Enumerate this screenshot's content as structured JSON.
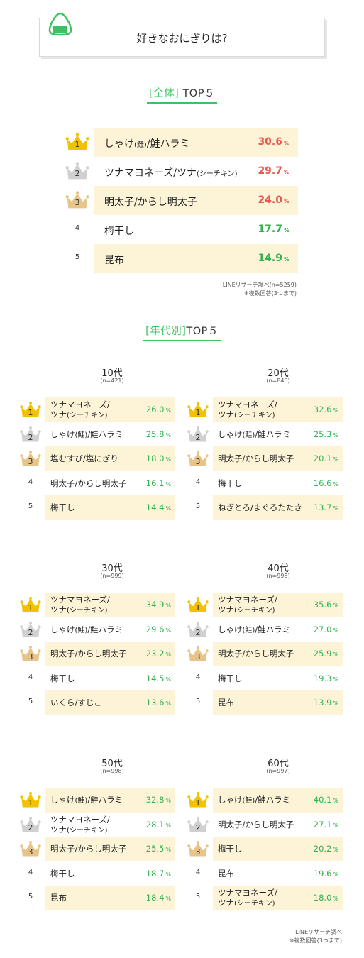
{
  "header": {
    "title": "好きなおにぎりは?"
  },
  "overall": {
    "heading_bracket": "[全体]",
    "heading_rest": " TOP５",
    "source": "LINEリサーチ調べ(n=5259)",
    "footnote": "※複数回答(3つまで)",
    "items": [
      {
        "rank": "1",
        "label": "しゃけ(鮭)/鮭ハラミ",
        "value": "30.6",
        "unit": "%",
        "color": "#e9584f"
      },
      {
        "rank": "2",
        "label": "ツナマヨネーズ/ツナ(シーチキン)",
        "value": "29.7",
        "unit": "%",
        "color": "#e9584f"
      },
      {
        "rank": "3",
        "label": "明太子/からし明太子",
        "value": "24.0",
        "unit": "%",
        "color": "#e9584f"
      },
      {
        "rank": "4",
        "label": "梅干し",
        "value": "17.7",
        "unit": "%",
        "color": "#2fb24f"
      },
      {
        "rank": "5",
        "label": "昆布",
        "value": "14.9",
        "unit": "%",
        "color": "#2fb24f"
      }
    ]
  },
  "by_age": {
    "heading_bracket": "[年代別]",
    "heading_rest": "TOP５",
    "groups": [
      {
        "title": "10代",
        "n": "(n=421)",
        "items": [
          {
            "rank": "1",
            "label": "ツナマヨネーズ/\nツナ(シーチキン)",
            "value": "26.0",
            "unit": "%"
          },
          {
            "rank": "2",
            "label": "しゃけ(鮭)/鮭ハラミ",
            "value": "25.8",
            "unit": "%"
          },
          {
            "rank": "3",
            "label": "塩むすび/塩にぎり",
            "value": "18.0",
            "unit": "%"
          },
          {
            "rank": "4",
            "label": "明太子/からし明太子",
            "value": "16.1",
            "unit": "%"
          },
          {
            "rank": "5",
            "label": "梅干し",
            "value": "14.4",
            "unit": "%"
          }
        ]
      },
      {
        "title": "20代",
        "n": "(n=846)",
        "items": [
          {
            "rank": "1",
            "label": "ツナマヨネーズ/\nツナ(シーチキン)",
            "value": "32.6",
            "unit": "%"
          },
          {
            "rank": "2",
            "label": "しゃけ(鮭)/鮭ハラミ",
            "value": "25.3",
            "unit": "%"
          },
          {
            "rank": "3",
            "label": "明太子/からし明太子",
            "value": "20.1",
            "unit": "%"
          },
          {
            "rank": "4",
            "label": "梅干し",
            "value": "16.6",
            "unit": "%"
          },
          {
            "rank": "5",
            "label": "ねぎとろ/まぐろたたき",
            "value": "13.7",
            "unit": "%"
          }
        ]
      },
      {
        "title": "30代",
        "n": "(n=999)",
        "items": [
          {
            "rank": "1",
            "label": "ツナマヨネーズ/\nツナ(シーチキン)",
            "value": "34.9",
            "unit": "%"
          },
          {
            "rank": "2",
            "label": "しゃけ(鮭)/鮭ハラミ",
            "value": "29.6",
            "unit": "%"
          },
          {
            "rank": "3",
            "label": "明太子/からし明太子",
            "value": "23.2",
            "unit": "%"
          },
          {
            "rank": "4",
            "label": "梅干し",
            "value": "14.5",
            "unit": "%"
          },
          {
            "rank": "5",
            "label": "いくら/すじこ",
            "value": "13.6",
            "unit": "%"
          }
        ]
      },
      {
        "title": "40代",
        "n": "(n=998)",
        "items": [
          {
            "rank": "1",
            "label": "ツナマヨネーズ/\nツナ(シーチキン)",
            "value": "35.6",
            "unit": "%"
          },
          {
            "rank": "2",
            "label": "しゃけ(鮭)/鮭ハラミ",
            "value": "27.0",
            "unit": "%"
          },
          {
            "rank": "3",
            "label": "明太子/からし明太子",
            "value": "25.9",
            "unit": "%"
          },
          {
            "rank": "4",
            "label": "梅干し",
            "value": "19.3",
            "unit": "%"
          },
          {
            "rank": "5",
            "label": "昆布",
            "value": "13.9",
            "unit": "%"
          }
        ]
      },
      {
        "title": "50代",
        "n": "(n=998)",
        "items": [
          {
            "rank": "1",
            "label": "しゃけ(鮭)/鮭ハラミ",
            "value": "32.8",
            "unit": "%"
          },
          {
            "rank": "2",
            "label": "ツナマヨネーズ/\nツナ(シーチキン)",
            "value": "28.1",
            "unit": "%"
          },
          {
            "rank": "3",
            "label": "明太子/からし明太子",
            "value": "25.5",
            "unit": "%"
          },
          {
            "rank": "4",
            "label": "梅干し",
            "value": "18.7",
            "unit": "%"
          },
          {
            "rank": "5",
            "label": "昆布",
            "value": "18.4",
            "unit": "%"
          }
        ]
      },
      {
        "title": "60代",
        "n": "(n=997)",
        "items": [
          {
            "rank": "1",
            "label": "しゃけ(鮭)/鮭ハラミ",
            "value": "40.1",
            "unit": "%"
          },
          {
            "rank": "2",
            "label": "明太子/からし明太子",
            "value": "27.1",
            "unit": "%"
          },
          {
            "rank": "3",
            "label": "梅干し",
            "value": "20.2",
            "unit": "%"
          },
          {
            "rank": "4",
            "label": "昆布",
            "value": "19.6",
            "unit": "%"
          },
          {
            "rank": "5",
            "label": "ツナマヨネーズ/\nツナ(シーチキン)",
            "value": "18.0",
            "unit": "%"
          }
        ]
      }
    ],
    "source": "LINEリサーチ調べ",
    "footnote": "※複数回答(3つまで)"
  },
  "colors": {
    "accent": "#3cc264",
    "row_bg": "#fdf4d8",
    "gold": "#f2c200",
    "silver": "#d0d0d0",
    "bronze": "#e7c489"
  },
  "icons": {
    "header": "onigiri-icon",
    "rank1": "gold-crown-icon",
    "rank2": "silver-crown-icon",
    "rank3": "bronze-crown-icon"
  },
  "chart_data": {
    "type": "table",
    "title": "好きなおにぎりは?",
    "overall": {
      "categories": [
        "しゃけ(鮭)/鮭ハラミ",
        "ツナマヨネーズ/ツナ(シーチキン)",
        "明太子/からし明太子",
        "梅干し",
        "昆布"
      ],
      "values": [
        30.6,
        29.7,
        24.0,
        17.7,
        14.9
      ],
      "unit": "%"
    },
    "by_age": [
      {
        "name": "10代",
        "categories": [
          "ツナマヨネーズ/ツナ(シーチキン)",
          "しゃけ(鮭)/鮭ハラミ",
          "塩むすび/塩にぎり",
          "明太子/からし明太子",
          "梅干し"
        ],
        "values": [
          26.0,
          25.8,
          18.0,
          16.1,
          14.4
        ]
      },
      {
        "name": "20代",
        "categories": [
          "ツナマヨネーズ/ツナ(シーチキン)",
          "しゃけ(鮭)/鮭ハラミ",
          "明太子/からし明太子",
          "梅干し",
          "ねぎとろ/まぐろたたき"
        ],
        "values": [
          32.6,
          25.3,
          20.1,
          16.6,
          13.7
        ]
      },
      {
        "name": "30代",
        "categories": [
          "ツナマヨネーズ/ツナ(シーチキン)",
          "しゃけ(鮭)/鮭ハラミ",
          "明太子/からし明太子",
          "梅干し",
          "いくら/すじこ"
        ],
        "values": [
          34.9,
          29.6,
          23.2,
          14.5,
          13.6
        ]
      },
      {
        "name": "40代",
        "categories": [
          "ツナマヨネーズ/ツナ(シーチキン)",
          "しゃけ(鮭)/鮭ハラミ",
          "明太子/からし明太子",
          "梅干し",
          "昆布"
        ],
        "values": [
          35.6,
          27.0,
          25.9,
          19.3,
          13.9
        ]
      },
      {
        "name": "50代",
        "categories": [
          "しゃけ(鮭)/鮭ハラミ",
          "ツナマヨネーズ/ツナ(シーチキン)",
          "明太子/からし明太子",
          "梅干し",
          "昆布"
        ],
        "values": [
          32.8,
          28.1,
          25.5,
          18.7,
          18.4
        ]
      },
      {
        "name": "60代",
        "categories": [
          "しゃけ(鮭)/鮭ハラミ",
          "明太子/からし明太子",
          "梅干し",
          "昆布",
          "ツナマヨネーズ/ツナ(シーチキン)"
        ],
        "values": [
          40.1,
          27.1,
          20.2,
          19.6,
          18.0
        ]
      }
    ]
  }
}
